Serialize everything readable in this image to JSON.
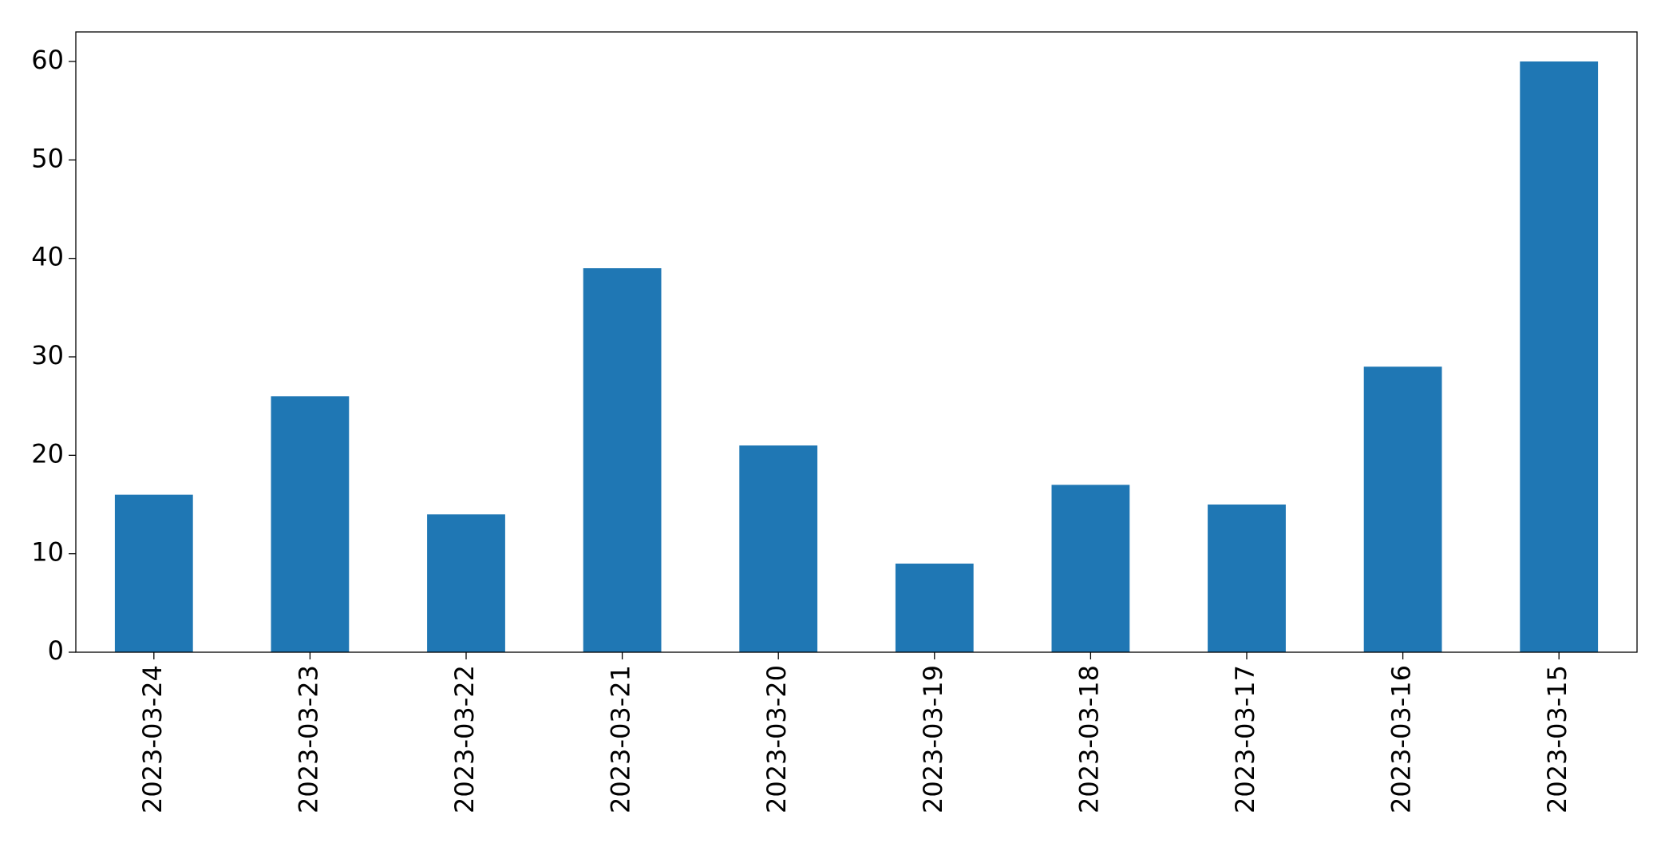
{
  "chart_data": {
    "type": "bar",
    "categories": [
      "2023-03-24",
      "2023-03-23",
      "2023-03-22",
      "2023-03-21",
      "2023-03-20",
      "2023-03-19",
      "2023-03-18",
      "2023-03-17",
      "2023-03-16",
      "2023-03-15"
    ],
    "values": [
      16,
      26,
      14,
      39,
      21,
      9,
      17,
      15,
      29,
      60
    ],
    "color": "#1f77b4",
    "ylim": [
      0,
      63
    ],
    "yticks": [
      0,
      10,
      20,
      30,
      40,
      50,
      60
    ],
    "grid": false
  }
}
